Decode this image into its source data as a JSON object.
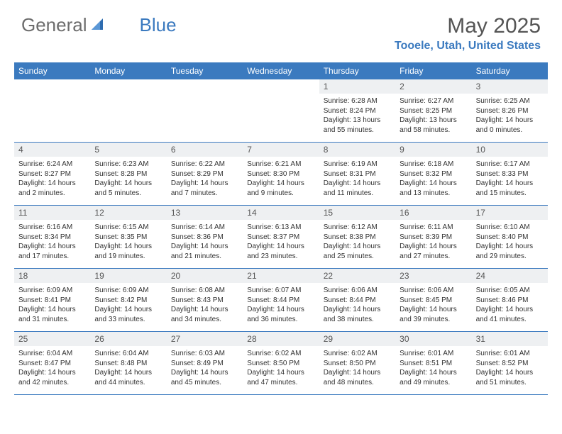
{
  "logo": {
    "text1": "General",
    "text2": "Blue"
  },
  "title": "May 2025",
  "location": "Tooele, Utah, United States",
  "colors": {
    "header_blue": "#3b7abf",
    "number_bar": "#eef0f2",
    "text": "#333333",
    "logo_gray": "#6d6d6d"
  },
  "weekdays": [
    "Sunday",
    "Monday",
    "Tuesday",
    "Wednesday",
    "Thursday",
    "Friday",
    "Saturday"
  ],
  "weeks": [
    [
      null,
      null,
      null,
      null,
      {
        "n": "1",
        "sunrise": "Sunrise: 6:28 AM",
        "sunset": "Sunset: 8:24 PM",
        "daylight": "Daylight: 13 hours and 55 minutes."
      },
      {
        "n": "2",
        "sunrise": "Sunrise: 6:27 AM",
        "sunset": "Sunset: 8:25 PM",
        "daylight": "Daylight: 13 hours and 58 minutes."
      },
      {
        "n": "3",
        "sunrise": "Sunrise: 6:25 AM",
        "sunset": "Sunset: 8:26 PM",
        "daylight": "Daylight: 14 hours and 0 minutes."
      }
    ],
    [
      {
        "n": "4",
        "sunrise": "Sunrise: 6:24 AM",
        "sunset": "Sunset: 8:27 PM",
        "daylight": "Daylight: 14 hours and 2 minutes."
      },
      {
        "n": "5",
        "sunrise": "Sunrise: 6:23 AM",
        "sunset": "Sunset: 8:28 PM",
        "daylight": "Daylight: 14 hours and 5 minutes."
      },
      {
        "n": "6",
        "sunrise": "Sunrise: 6:22 AM",
        "sunset": "Sunset: 8:29 PM",
        "daylight": "Daylight: 14 hours and 7 minutes."
      },
      {
        "n": "7",
        "sunrise": "Sunrise: 6:21 AM",
        "sunset": "Sunset: 8:30 PM",
        "daylight": "Daylight: 14 hours and 9 minutes."
      },
      {
        "n": "8",
        "sunrise": "Sunrise: 6:19 AM",
        "sunset": "Sunset: 8:31 PM",
        "daylight": "Daylight: 14 hours and 11 minutes."
      },
      {
        "n": "9",
        "sunrise": "Sunrise: 6:18 AM",
        "sunset": "Sunset: 8:32 PM",
        "daylight": "Daylight: 14 hours and 13 minutes."
      },
      {
        "n": "10",
        "sunrise": "Sunrise: 6:17 AM",
        "sunset": "Sunset: 8:33 PM",
        "daylight": "Daylight: 14 hours and 15 minutes."
      }
    ],
    [
      {
        "n": "11",
        "sunrise": "Sunrise: 6:16 AM",
        "sunset": "Sunset: 8:34 PM",
        "daylight": "Daylight: 14 hours and 17 minutes."
      },
      {
        "n": "12",
        "sunrise": "Sunrise: 6:15 AM",
        "sunset": "Sunset: 8:35 PM",
        "daylight": "Daylight: 14 hours and 19 minutes."
      },
      {
        "n": "13",
        "sunrise": "Sunrise: 6:14 AM",
        "sunset": "Sunset: 8:36 PM",
        "daylight": "Daylight: 14 hours and 21 minutes."
      },
      {
        "n": "14",
        "sunrise": "Sunrise: 6:13 AM",
        "sunset": "Sunset: 8:37 PM",
        "daylight": "Daylight: 14 hours and 23 minutes."
      },
      {
        "n": "15",
        "sunrise": "Sunrise: 6:12 AM",
        "sunset": "Sunset: 8:38 PM",
        "daylight": "Daylight: 14 hours and 25 minutes."
      },
      {
        "n": "16",
        "sunrise": "Sunrise: 6:11 AM",
        "sunset": "Sunset: 8:39 PM",
        "daylight": "Daylight: 14 hours and 27 minutes."
      },
      {
        "n": "17",
        "sunrise": "Sunrise: 6:10 AM",
        "sunset": "Sunset: 8:40 PM",
        "daylight": "Daylight: 14 hours and 29 minutes."
      }
    ],
    [
      {
        "n": "18",
        "sunrise": "Sunrise: 6:09 AM",
        "sunset": "Sunset: 8:41 PM",
        "daylight": "Daylight: 14 hours and 31 minutes."
      },
      {
        "n": "19",
        "sunrise": "Sunrise: 6:09 AM",
        "sunset": "Sunset: 8:42 PM",
        "daylight": "Daylight: 14 hours and 33 minutes."
      },
      {
        "n": "20",
        "sunrise": "Sunrise: 6:08 AM",
        "sunset": "Sunset: 8:43 PM",
        "daylight": "Daylight: 14 hours and 34 minutes."
      },
      {
        "n": "21",
        "sunrise": "Sunrise: 6:07 AM",
        "sunset": "Sunset: 8:44 PM",
        "daylight": "Daylight: 14 hours and 36 minutes."
      },
      {
        "n": "22",
        "sunrise": "Sunrise: 6:06 AM",
        "sunset": "Sunset: 8:44 PM",
        "daylight": "Daylight: 14 hours and 38 minutes."
      },
      {
        "n": "23",
        "sunrise": "Sunrise: 6:06 AM",
        "sunset": "Sunset: 8:45 PM",
        "daylight": "Daylight: 14 hours and 39 minutes."
      },
      {
        "n": "24",
        "sunrise": "Sunrise: 6:05 AM",
        "sunset": "Sunset: 8:46 PM",
        "daylight": "Daylight: 14 hours and 41 minutes."
      }
    ],
    [
      {
        "n": "25",
        "sunrise": "Sunrise: 6:04 AM",
        "sunset": "Sunset: 8:47 PM",
        "daylight": "Daylight: 14 hours and 42 minutes."
      },
      {
        "n": "26",
        "sunrise": "Sunrise: 6:04 AM",
        "sunset": "Sunset: 8:48 PM",
        "daylight": "Daylight: 14 hours and 44 minutes."
      },
      {
        "n": "27",
        "sunrise": "Sunrise: 6:03 AM",
        "sunset": "Sunset: 8:49 PM",
        "daylight": "Daylight: 14 hours and 45 minutes."
      },
      {
        "n": "28",
        "sunrise": "Sunrise: 6:02 AM",
        "sunset": "Sunset: 8:50 PM",
        "daylight": "Daylight: 14 hours and 47 minutes."
      },
      {
        "n": "29",
        "sunrise": "Sunrise: 6:02 AM",
        "sunset": "Sunset: 8:50 PM",
        "daylight": "Daylight: 14 hours and 48 minutes."
      },
      {
        "n": "30",
        "sunrise": "Sunrise: 6:01 AM",
        "sunset": "Sunset: 8:51 PM",
        "daylight": "Daylight: 14 hours and 49 minutes."
      },
      {
        "n": "31",
        "sunrise": "Sunrise: 6:01 AM",
        "sunset": "Sunset: 8:52 PM",
        "daylight": "Daylight: 14 hours and 51 minutes."
      }
    ]
  ]
}
